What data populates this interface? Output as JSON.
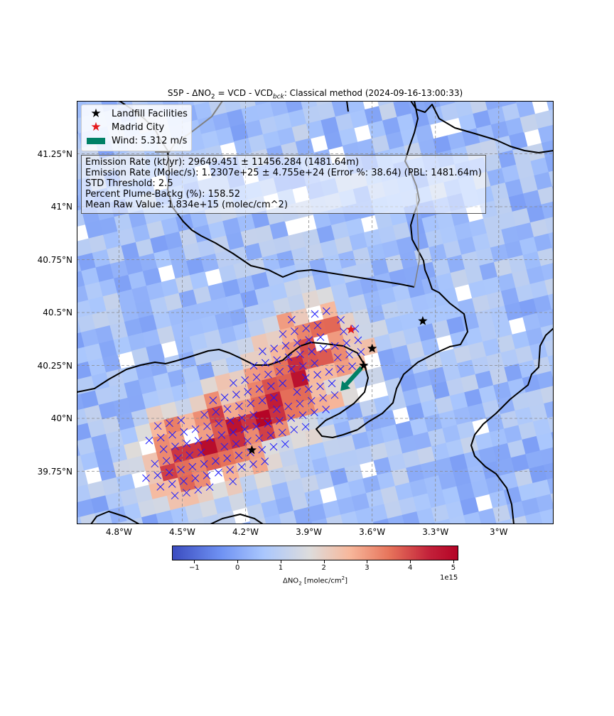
{
  "title": {
    "prefix": "S5P - ΔNO",
    "sub1": "2",
    "mid": " =  VCD - VCD",
    "sub2": "bck",
    "suffix": ": Classical method (2024-09-16-13:00:33)"
  },
  "map": {
    "lon_range": [
      -5.0,
      -2.74
    ],
    "lat_range": [
      39.5,
      41.5
    ],
    "lat_ticks": [
      {
        "value": 41.25,
        "label": "41.25°N"
      },
      {
        "value": 41.0,
        "label": "41°N"
      },
      {
        "value": 40.75,
        "label": "40.75°N"
      },
      {
        "value": 40.5,
        "label": "40.5°N"
      },
      {
        "value": 40.25,
        "label": "40.25°N"
      },
      {
        "value": 40.0,
        "label": "40°N"
      },
      {
        "value": 39.75,
        "label": "39.75°N"
      }
    ],
    "lon_ticks": [
      {
        "value": -4.8,
        "label": "4.8°W"
      },
      {
        "value": -4.5,
        "label": "4.5°W"
      },
      {
        "value": -4.2,
        "label": "4.2°W"
      },
      {
        "value": -3.9,
        "label": "3.9°W"
      },
      {
        "value": -3.6,
        "label": "3.6°W"
      },
      {
        "value": -3.3,
        "label": "3.3°W"
      },
      {
        "value": -3.0,
        "label": "3°W"
      }
    ],
    "landfills": [
      {
        "lon": -4.17,
        "lat": 39.85
      },
      {
        "lon": -3.64,
        "lat": 40.25
      },
      {
        "lon": -3.6,
        "lat": 40.33
      },
      {
        "lon": -3.36,
        "lat": 40.46
      }
    ],
    "madrid": {
      "lon": -3.7,
      "lat": 40.42
    },
    "wind_arrow": {
      "from": {
        "lon": -3.65,
        "lat": 40.24
      },
      "to": {
        "lon": -3.75,
        "lat": 40.13
      },
      "color": "#008066"
    }
  },
  "legend": {
    "landfill": "Landfill Facilities",
    "madrid": "Madrid City",
    "wind": "Wind: 5.312 m/s"
  },
  "stats": {
    "line1": "Emission Rate (kt/yr): 29649.451 ± 11456.284 (1481.64m)",
    "line2": "Emission Rate (Molec/s): 1.2307e+25 ± 4.755e+24 (Error %: 38.64) (PBL: 1481.64m)",
    "line3": "STD Threshold: 2.5",
    "line4": "Percent Plume-Backg (%): 158.52",
    "line5": "Mean Raw Value: 1.834e+15 (molec/cm^2)"
  },
  "colorbar": {
    "range": [
      -1.5,
      5.1
    ],
    "ticks": [
      {
        "value": -1,
        "label": "−1"
      },
      {
        "value": 0,
        "label": "0"
      },
      {
        "value": 1,
        "label": "1"
      },
      {
        "value": 2,
        "label": "2"
      },
      {
        "value": 3,
        "label": "3"
      },
      {
        "value": 4,
        "label": "4"
      },
      {
        "value": 5,
        "label": "5"
      }
    ],
    "exponent": "1e15",
    "label_prefix": "ΔNO",
    "label_sub": "2",
    "label_suffix": " [molec/cm",
    "label_sup": "2",
    "label_end": "]"
  },
  "colors": {
    "landfill": "#000000",
    "madrid": "#e41a1c",
    "wind": "#008066",
    "plume_marker": "#1a1aff",
    "borders": "#000000",
    "sea_border": "#808080"
  }
}
